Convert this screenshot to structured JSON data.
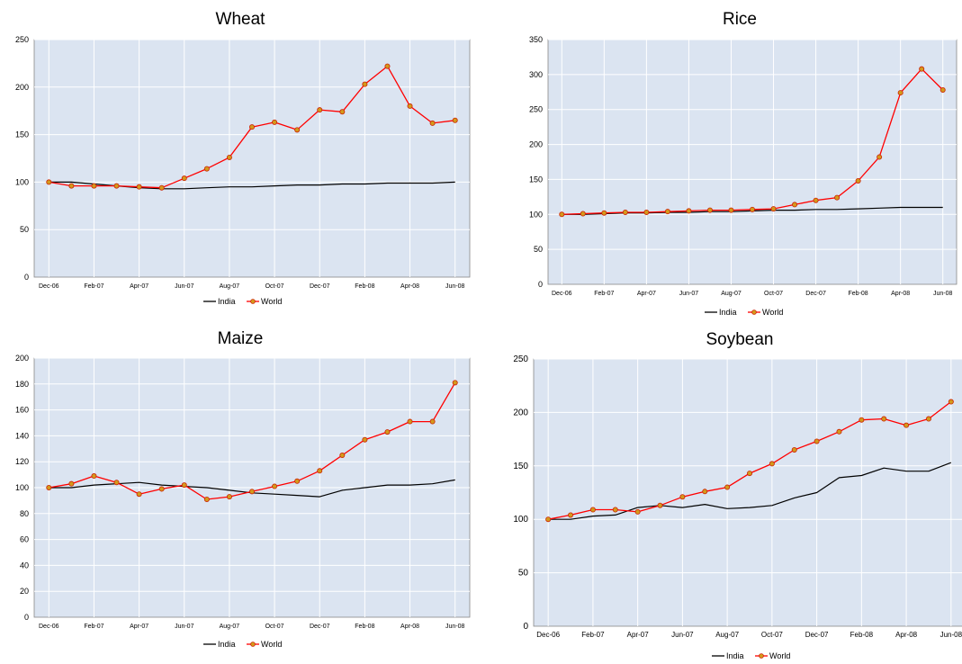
{
  "chart_data": [
    {
      "type": "line",
      "title": "Wheat",
      "x": [
        "Dec-06",
        "Jan-07",
        "Feb-07",
        "Mar-07",
        "Apr-07",
        "May-07",
        "Jun-07",
        "Jul-07",
        "Aug-07",
        "Sep-07",
        "Oct-07",
        "Nov-07",
        "Dec-07",
        "Jan-08",
        "Feb-08",
        "Mar-08",
        "Apr-08",
        "May-08",
        "Jun-08"
      ],
      "xtick_labels": [
        "Dec-06",
        "Feb-07",
        "Apr-07",
        "Jun-07",
        "Aug-07",
        "Oct-07",
        "Dec-07",
        "Feb-08",
        "Apr-08",
        "Jun-08"
      ],
      "ylim": [
        0,
        250
      ],
      "yticks": [
        0,
        50,
        100,
        150,
        200,
        250
      ],
      "grid": true,
      "legend": "bottom",
      "series": [
        {
          "name": "India",
          "color": "#000000",
          "marker": false,
          "values": [
            100,
            100,
            98,
            96,
            94,
            93,
            93,
            94,
            95,
            95,
            96,
            97,
            97,
            98,
            98,
            99,
            99,
            99,
            100
          ]
        },
        {
          "name": "World",
          "color": "#ff0000",
          "marker": true,
          "values": [
            100,
            96,
            96,
            96,
            95,
            94,
            104,
            114,
            126,
            158,
            163,
            155,
            176,
            174,
            203,
            222,
            180,
            162,
            165
          ]
        }
      ]
    },
    {
      "type": "line",
      "title": "Rice",
      "x": [
        "Dec-06",
        "Jan-07",
        "Feb-07",
        "Mar-07",
        "Apr-07",
        "May-07",
        "Jun-07",
        "Jul-07",
        "Aug-07",
        "Sep-07",
        "Oct-07",
        "Nov-07",
        "Dec-07",
        "Jan-08",
        "Feb-08",
        "Mar-08",
        "Apr-08",
        "May-08",
        "Jun-08"
      ],
      "xtick_labels": [
        "Dec-06",
        "Feb-07",
        "Apr-07",
        "Jun-07",
        "Aug-07",
        "Oct-07",
        "Dec-07",
        "Feb-08",
        "Apr-08",
        "Jun-08"
      ],
      "ylim": [
        0,
        350
      ],
      "yticks": [
        0,
        50,
        100,
        150,
        200,
        250,
        300,
        350
      ],
      "grid": true,
      "legend": "bottom",
      "series": [
        {
          "name": "India",
          "color": "#000000",
          "marker": false,
          "values": [
            100,
            100,
            101,
            102,
            102,
            103,
            103,
            104,
            104,
            105,
            106,
            106,
            107,
            107,
            108,
            109,
            110,
            110,
            110
          ]
        },
        {
          "name": "World",
          "color": "#ff0000",
          "marker": true,
          "values": [
            100,
            101,
            102,
            103,
            103,
            104,
            105,
            106,
            106,
            107,
            108,
            114,
            120,
            124,
            148,
            182,
            274,
            308,
            278
          ]
        }
      ]
    },
    {
      "type": "line",
      "title": "Maize",
      "x": [
        "Dec-06",
        "Jan-07",
        "Feb-07",
        "Mar-07",
        "Apr-07",
        "May-07",
        "Jun-07",
        "Jul-07",
        "Aug-07",
        "Sep-07",
        "Oct-07",
        "Nov-07",
        "Dec-07",
        "Jan-08",
        "Feb-08",
        "Mar-08",
        "Apr-08",
        "May-08",
        "Jun-08"
      ],
      "xtick_labels": [
        "Dec-06",
        "Feb-07",
        "Apr-07",
        "Jun-07",
        "Aug-07",
        "Oct-07",
        "Dec-07",
        "Feb-08",
        "Apr-08",
        "Jun-08"
      ],
      "ylim": [
        0,
        200
      ],
      "yticks": [
        0,
        20,
        40,
        60,
        80,
        100,
        120,
        140,
        160,
        180,
        200
      ],
      "grid": true,
      "legend": "bottom",
      "series": [
        {
          "name": "India",
          "color": "#000000",
          "marker": false,
          "values": [
            100,
            100,
            102,
            103,
            104,
            102,
            101,
            100,
            98,
            96,
            95,
            94,
            93,
            98,
            100,
            102,
            102,
            103,
            106
          ]
        },
        {
          "name": "World",
          "color": "#ff0000",
          "marker": true,
          "values": [
            100,
            103,
            109,
            104,
            95,
            99,
            102,
            91,
            93,
            97,
            101,
            105,
            113,
            125,
            137,
            143,
            151,
            151,
            181
          ]
        }
      ]
    },
    {
      "type": "line",
      "title": "Soybean",
      "x": [
        "Dec-06",
        "Jan-07",
        "Feb-07",
        "Mar-07",
        "Apr-07",
        "May-07",
        "Jun-07",
        "Jul-07",
        "Aug-07",
        "Sep-07",
        "Oct-07",
        "Nov-07",
        "Dec-07",
        "Jan-08",
        "Feb-08",
        "Mar-08",
        "Apr-08",
        "May-08",
        "Jun-08"
      ],
      "xtick_labels": [
        "Dec-06",
        "Feb-07",
        "Apr-07",
        "Jun-07",
        "Aug-07",
        "Oct-07",
        "Dec-07",
        "Feb-08",
        "Apr-08",
        "Jun-08"
      ],
      "ylim": [
        0,
        250
      ],
      "yticks": [
        0,
        50,
        100,
        150,
        200,
        250
      ],
      "grid": true,
      "legend": "bottom",
      "series": [
        {
          "name": "India",
          "color": "#000000",
          "marker": false,
          "values": [
            100,
            100,
            103,
            104,
            111,
            113,
            111,
            114,
            110,
            111,
            113,
            120,
            125,
            139,
            141,
            148,
            145,
            145,
            153
          ]
        },
        {
          "name": "World",
          "color": "#ff0000",
          "marker": true,
          "values": [
            100,
            104,
            109,
            109,
            107,
            113,
            121,
            126,
            130,
            143,
            152,
            165,
            173,
            182,
            193,
            194,
            188,
            194,
            210
          ]
        }
      ]
    }
  ]
}
